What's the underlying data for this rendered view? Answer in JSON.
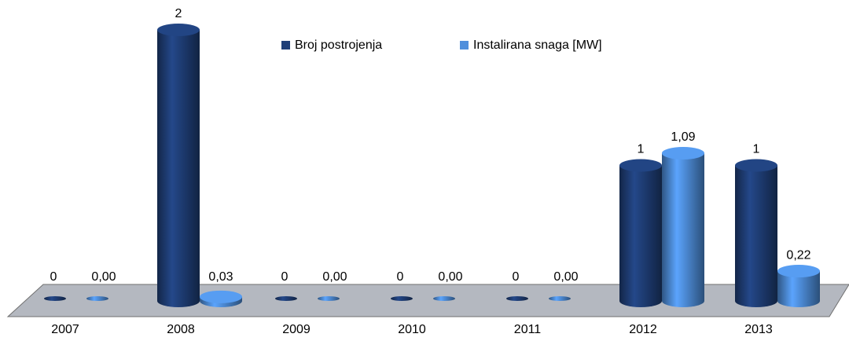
{
  "chart_data": {
    "type": "bar3d",
    "categories": [
      "2007",
      "2008",
      "2009",
      "2010",
      "2011",
      "2012",
      "2013"
    ],
    "series": [
      {
        "name": "Broj postrojenja",
        "color": "#1f3f78",
        "values": [
          0,
          2,
          0,
          0,
          0,
          1,
          1
        ]
      },
      {
        "name": "Instalirana snaga [MW]",
        "color": "#4f8fdc",
        "values": [
          0,
          0.03,
          0,
          0,
          0,
          1.09,
          0.22
        ],
        "value_labels": [
          "0,00",
          "0,03",
          "0,00",
          "0,00",
          "0,00",
          "1,09",
          "0,22"
        ]
      }
    ],
    "legend": "top"
  }
}
